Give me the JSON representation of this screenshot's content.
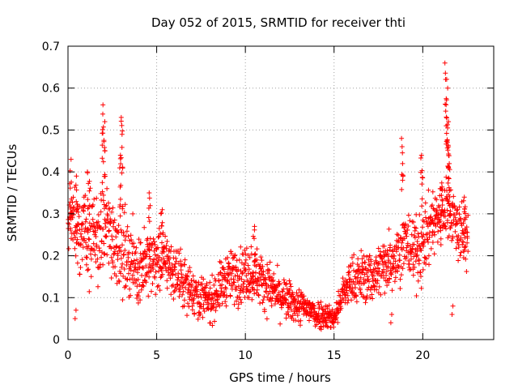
{
  "chart_data": {
    "type": "scatter",
    "title": "Day 052 of 2015, SRMTID for receiver thti",
    "xlabel": "GPS time / hours",
    "ylabel": "SRMTID / TECUs",
    "xlim": [
      0,
      24
    ],
    "ylim": [
      0,
      0.7
    ],
    "xticks": [
      0,
      5,
      10,
      15,
      20
    ],
    "xtick_labels": [
      "0",
      "5",
      "10",
      "15",
      "20"
    ],
    "yticks": [
      0,
      0.1,
      0.2,
      0.3,
      0.4,
      0.5,
      0.6,
      0.7
    ],
    "ytick_labels": [
      "0",
      "0.1",
      "0.2",
      "0.3",
      "0.4",
      "0.5",
      "0.6",
      "0.7"
    ],
    "grid": true,
    "marker": "+",
    "marker_color": "#ff0000",
    "series": [
      {
        "name": "SRMTID",
        "trend": {
          "hours": [
            0,
            0.5,
            1,
            1.5,
            2,
            2.5,
            3,
            3.5,
            4,
            4.5,
            5,
            5.5,
            6,
            6.5,
            7,
            7.5,
            8,
            8.5,
            9,
            9.5,
            10,
            10.5,
            11,
            11.5,
            12,
            12.5,
            13,
            13.5,
            14,
            14.5,
            15,
            15.5,
            16,
            16.5,
            17,
            17.5,
            18,
            18.5,
            19,
            19.5,
            20,
            20.5,
            21,
            21.5,
            22,
            22.5
          ],
          "srmtid": [
            0.31,
            0.27,
            0.25,
            0.23,
            0.27,
            0.25,
            0.22,
            0.19,
            0.17,
            0.18,
            0.19,
            0.19,
            0.16,
            0.14,
            0.12,
            0.1,
            0.09,
            0.12,
            0.15,
            0.15,
            0.16,
            0.16,
            0.14,
            0.12,
            0.1,
            0.09,
            0.08,
            0.075,
            0.06,
            0.06,
            0.05,
            0.11,
            0.14,
            0.15,
            0.15,
            0.16,
            0.19,
            0.2,
            0.23,
            0.21,
            0.22,
            0.28,
            0.3,
            0.32,
            0.26,
            0.24
          ]
        },
        "spread": {
          "hours": [
            0,
            2,
            4,
            6,
            8,
            10,
            12,
            14,
            15,
            16,
            18,
            20,
            21,
            22.5
          ],
          "srmtid": [
            0.07,
            0.08,
            0.06,
            0.045,
            0.035,
            0.05,
            0.035,
            0.025,
            0.02,
            0.04,
            0.05,
            0.06,
            0.06,
            0.05
          ]
        },
        "start_hour": 0,
        "end_hour": 22.55,
        "sample_interval_hours": 0.025,
        "bursts": [
          {
            "hour": 0.15,
            "srmtid": 0.43
          },
          {
            "hour": 0.5,
            "srmtid": 0.39
          },
          {
            "hour": 1.15,
            "srmtid": 0.4
          },
          {
            "hour": 1.95,
            "srmtid": 0.56
          },
          {
            "hour": 2.05,
            "srmtid": 0.52
          },
          {
            "hour": 3.05,
            "srmtid": 0.53
          },
          {
            "hour": 2.95,
            "srmtid": 0.44
          },
          {
            "hour": 4.6,
            "srmtid": 0.35
          },
          {
            "hour": 5.3,
            "srmtid": 0.31
          },
          {
            "hour": 10.5,
            "srmtid": 0.27
          },
          {
            "hour": 18.85,
            "srmtid": 0.48
          },
          {
            "hour": 19.95,
            "srmtid": 0.44
          },
          {
            "hour": 21.05,
            "srmtid": 0.36
          },
          {
            "hour": 21.3,
            "srmtid": 0.66
          },
          {
            "hour": 21.35,
            "srmtid": 0.6
          },
          {
            "hour": 21.4,
            "srmtid": 0.52
          },
          {
            "hour": 21.45,
            "srmtid": 0.46
          },
          {
            "hour": 21.5,
            "srmtid": 0.41
          },
          {
            "hour": 22.35,
            "srmtid": 0.34
          }
        ],
        "dips": [
          {
            "hour": 0.4,
            "srmtid": 0.05
          },
          {
            "hour": 21.65,
            "srmtid": 0.06
          },
          {
            "hour": 18.2,
            "srmtid": 0.04
          }
        ]
      }
    ]
  }
}
